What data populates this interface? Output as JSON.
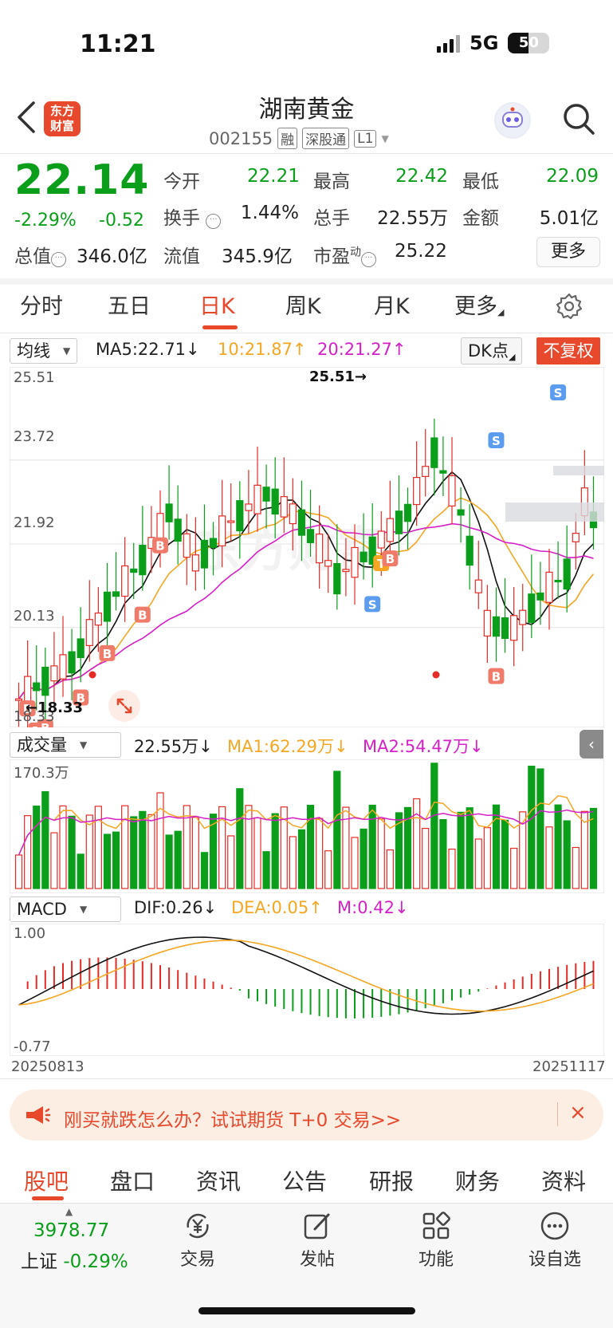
{
  "status": {
    "time": "11:21",
    "network": "5G",
    "battery": "50",
    "battery_level": 0.5
  },
  "header": {
    "logo_line1": "东方",
    "logo_line2": "财富",
    "title": "湖南黄金",
    "code": "002155",
    "tags": [
      "融",
      "深股通",
      "L1"
    ]
  },
  "quote": {
    "price": "22.14",
    "change_pct": "-2.29%",
    "change": "-0.52",
    "fields": {
      "open": {
        "label": "今开",
        "value": "22.21"
      },
      "high": {
        "label": "最高",
        "value": "22.42"
      },
      "low": {
        "label": "最低",
        "value": "22.09"
      },
      "turnover": {
        "label": "换手",
        "value": "1.44%"
      },
      "volume": {
        "label": "总手",
        "value": "22.55万"
      },
      "amount": {
        "label": "金额",
        "value": "5.01亿"
      },
      "total_cap": {
        "label": "总值",
        "value": "346.0亿"
      },
      "float_cap": {
        "label": "流值",
        "value": "345.9亿"
      },
      "pe": {
        "label": "市盈",
        "sup": "动",
        "value": "25.22"
      }
    },
    "more": "更多"
  },
  "tabs": {
    "items": [
      "分时",
      "五日",
      "日K",
      "周K",
      "月K",
      "更多"
    ],
    "active": "日K"
  },
  "kline": {
    "selector": "均线",
    "ma5": "MA5:22.71↓",
    "ma10": "10:21.87↑",
    "ma20": "20:21.27↑",
    "dk": "DK点",
    "fuquan": "不复权",
    "y_labels": [
      "25.51",
      "23.72",
      "21.92",
      "20.13",
      "18.33"
    ],
    "high_marker": "25.51→",
    "low_marker": "←18.33",
    "watermark": "东方财富",
    "colors": {
      "up": "#e62b26",
      "down": "#0a9e1a",
      "ma5": "#111111",
      "ma10": "#f5a623",
      "ma20": "#d61fc8"
    }
  },
  "volume": {
    "selector": "成交量",
    "value": "22.55万↓",
    "ma1": "MA1:62.29万↓",
    "ma2": "MA2:54.47万↓",
    "y_top": "170.3万"
  },
  "macd": {
    "selector": "MACD",
    "dif": "DIF:0.26↓",
    "dea": "DEA:0.05↑",
    "m": "M:0.42↓",
    "y_top": "1.00",
    "y_bottom": "-0.77",
    "date_start": "20250813",
    "date_end": "20251117"
  },
  "promo": {
    "text": "刚买就跌怎么办？试试期货 T+0 交易>>",
    "close": "×"
  },
  "subtabs": {
    "items": [
      "股吧",
      "盘口",
      "资讯",
      "公告",
      "研报",
      "财务",
      "资料"
    ],
    "active": "股吧"
  },
  "bottom": {
    "index_value": "3978.77",
    "index_name": "上证",
    "index_pct": "-0.29%",
    "items": [
      {
        "label": "交易",
        "icon": "yen-cycle-icon"
      },
      {
        "label": "发帖",
        "icon": "edit-icon"
      },
      {
        "label": "功能",
        "icon": "grid-icon"
      },
      {
        "label": "设自选",
        "icon": "more-dots-icon"
      }
    ]
  }
}
